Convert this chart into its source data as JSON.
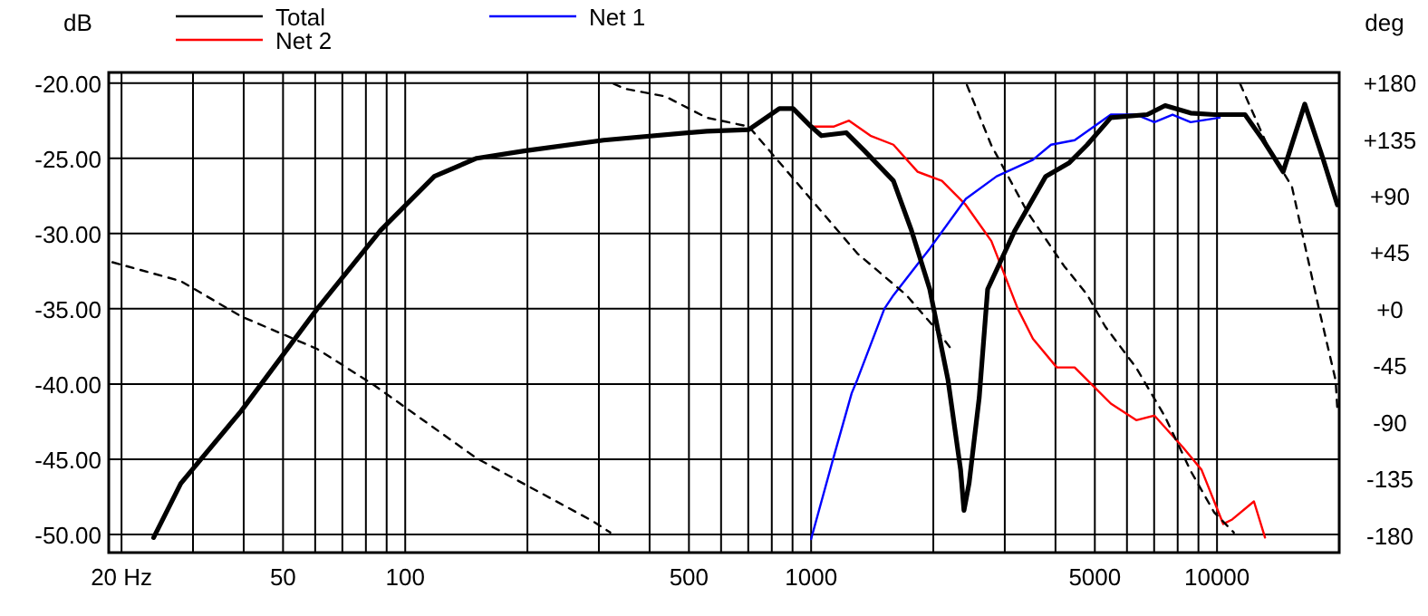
{
  "chart_data": {
    "type": "line",
    "ylabel": "dB",
    "y2label": "deg",
    "log": "x",
    "grid": true,
    "legend": "top",
    "xlim": [
      18.6,
      20000
    ],
    "ylim": [
      -51.2,
      -19.3
    ],
    "y2lim": [
      -194,
      188
    ],
    "xticks": [
      {
        "value": 20,
        "label": "20 Hz"
      },
      {
        "value": 30,
        "label": null
      },
      {
        "value": 40,
        "label": null
      },
      50,
      {
        "value": 60,
        "label": null
      },
      {
        "value": 70,
        "label": null
      },
      {
        "value": 80,
        "label": null
      },
      {
        "value": 90,
        "label": null
      },
      100,
      {
        "value": 200,
        "label": null
      },
      {
        "value": 300,
        "label": null
      },
      {
        "value": 400,
        "label": null
      },
      500,
      {
        "value": 600,
        "label": null
      },
      {
        "value": 700,
        "label": null
      },
      {
        "value": 800,
        "label": null
      },
      {
        "value": 900,
        "label": null
      },
      1000,
      {
        "value": 2000,
        "label": null
      },
      {
        "value": 3000,
        "label": null
      },
      {
        "value": 4000,
        "label": null
      },
      5000,
      {
        "value": 6000,
        "label": null
      },
      {
        "value": 7000,
        "label": null
      },
      {
        "value": 8000,
        "label": null
      },
      {
        "value": 9000,
        "label": null
      },
      10000,
      {
        "value": 20000,
        "label": null
      }
    ],
    "yticks": [
      {
        "value": -50,
        "label": "-50.00"
      },
      {
        "value": -45,
        "label": "-45.00"
      },
      {
        "value": -40,
        "label": "-40.00"
      },
      {
        "value": -35,
        "label": "-35.00"
      },
      {
        "value": -30,
        "label": "-30.00"
      },
      {
        "value": -25,
        "label": "-25.00"
      },
      {
        "value": -20,
        "label": "-20.00"
      }
    ],
    "y2ticks": [
      -180,
      -135,
      -90,
      -45,
      {
        "value": 0,
        "label": "+0"
      },
      {
        "value": 45,
        "label": "+45"
      },
      {
        "value": 90,
        "label": "+90"
      },
      {
        "value": 135,
        "label": "+135"
      },
      {
        "value": 180,
        "label": "+180"
      }
    ],
    "series": [
      {
        "name": "Net 2",
        "color": "#ff0000",
        "x": [
          1000,
          1135,
          1240,
          1400,
          1595,
          1830,
          2100,
          2405,
          2780,
          3230,
          3520,
          4030,
          4460,
          5475,
          6325,
          7010,
          8240,
          9160,
          10360,
          10900,
          12330,
          13130
        ],
        "values": [
          -22.9,
          -22.9,
          -22.5,
          -23.5,
          -24.1,
          -25.9,
          -26.5,
          -28.1,
          -30.5,
          -35,
          -37,
          -38.9,
          -38.9,
          -41.3,
          -42.4,
          -42.1,
          -44.2,
          -45.7,
          -49.3,
          -49,
          -47.8,
          -50.2
        ]
      },
      {
        "name": "Net 1",
        "color": "#0000ff",
        "x": [
          1000,
          1135,
          1259,
          1300,
          1515,
          1595,
          1960,
          2405,
          2865,
          3520,
          3900,
          4460,
          5475,
          6325,
          7010,
          7770,
          8610,
          10150
        ],
        "values": [
          -50.3,
          -44.9,
          -40.6,
          -39.7,
          -35,
          -34.1,
          -31,
          -27.7,
          -26.2,
          -25.1,
          -24.1,
          -23.8,
          -22.1,
          -22.1,
          -22.6,
          -22.1,
          -22.6,
          -22.3
        ]
      },
      {
        "name": "Total",
        "color": "#000000",
        "x": [
          24,
          28,
          39.4,
          60.7,
          86.9,
          118,
          150,
          198,
          308,
          553,
          702,
          835,
          903,
          1000,
          1060,
          1220,
          1353,
          1595,
          1767,
          1960,
          2173,
          2335,
          2380,
          2450,
          2595,
          2722,
          3177,
          3785,
          4325,
          4790,
          5475,
          6730,
          7450,
          8610,
          9840,
          11720,
          12990,
          14550,
          16450,
          18230,
          19800
        ],
        "values": [
          -50.2,
          -46.6,
          -41.8,
          -35,
          -29.8,
          -26.2,
          -25,
          -24.5,
          -23.8,
          -23.2,
          -23.1,
          -21.7,
          -21.7,
          -22.9,
          -23.5,
          -23.3,
          -24.5,
          -26.5,
          -29.8,
          -33.7,
          -39.7,
          -45.7,
          -48.4,
          -46.6,
          -40.9,
          -33.7,
          -29.8,
          -26.2,
          -25.3,
          -24.1,
          -22.3,
          -22.1,
          -21.5,
          -22,
          -22.1,
          -22.1,
          -23.8,
          -25.9,
          -21.4,
          -25,
          -28.1
        ]
      },
      {
        "color": "#000000",
        "axis": "y2",
        "line_style": "dashed",
        "x": [
          19,
          28,
          39.4,
          60.7,
          84,
          150,
          290,
          320,
          324,
          326,
          348,
          437,
          553,
          702,
          1000,
          1300,
          1715,
          2040,
          2250,
          2400,
          2420,
          2780,
          3410,
          4200,
          4790,
          5300,
          6325,
          7450,
          8610,
          9840,
          11000,
          11300,
          11400,
          13300,
          15300,
          17800,
          19600,
          19800
        ],
        "values": [
          37,
          22,
          -6,
          -32,
          -61,
          -119,
          -169,
          -178,
          null,
          179,
          175,
          169,
          152,
          145,
          87,
          44,
          11,
          -17,
          -35,
          null,
          178,
          130,
          77,
          34,
          11,
          -14,
          -47,
          -86,
          -129,
          -162,
          -178,
          null,
          179,
          130,
          97,
          1,
          -57,
          -81
        ]
      }
    ]
  }
}
